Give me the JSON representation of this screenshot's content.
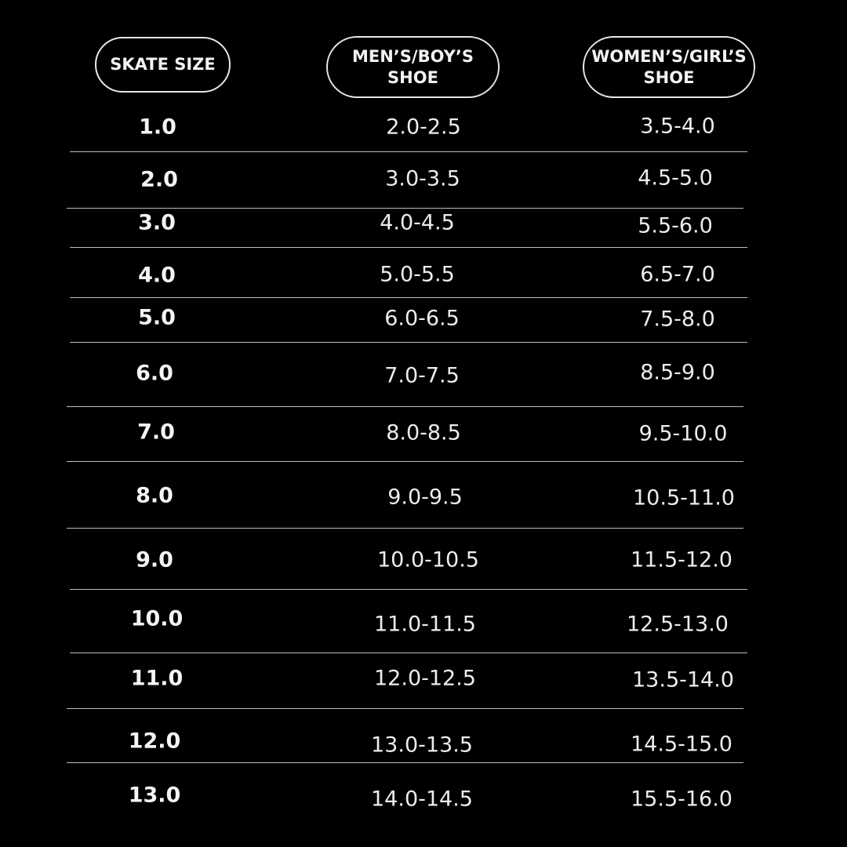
{
  "table": {
    "headers": [
      "SKATE SIZE",
      "MEN’S/BOY’S SHOE",
      "WOMEN’S/GIRL’S SHOE"
    ],
    "rows": [
      [
        "1.0",
        "2.0-2.5",
        "3.5-4.0"
      ],
      [
        "2.0",
        "3.0-3.5",
        "4.5-5.0"
      ],
      [
        "3.0",
        "4.0-4.5",
        "5.5-6.0"
      ],
      [
        "4.0",
        "5.0-5.5",
        "6.5-7.0"
      ],
      [
        "5.0",
        "6.0-6.5",
        "7.5-8.0"
      ],
      [
        "6.0",
        "7.0-7.5",
        "8.5-9.0"
      ],
      [
        "7.0",
        "8.0-8.5",
        "9.5-10.0"
      ],
      [
        "8.0",
        "9.0-9.5",
        "10.5-11.0"
      ],
      [
        "9.0",
        "10.0-10.5",
        "11.5-12.0"
      ],
      [
        "10.0",
        "11.0-11.5",
        "12.5-13.0"
      ],
      [
        "11.0",
        "12.0-12.5",
        "13.5-14.0"
      ],
      [
        "12.0",
        "13.0-13.5",
        "14.5-15.0"
      ],
      [
        "13.0",
        "14.0-14.5",
        "15.5-16.0"
      ]
    ]
  }
}
